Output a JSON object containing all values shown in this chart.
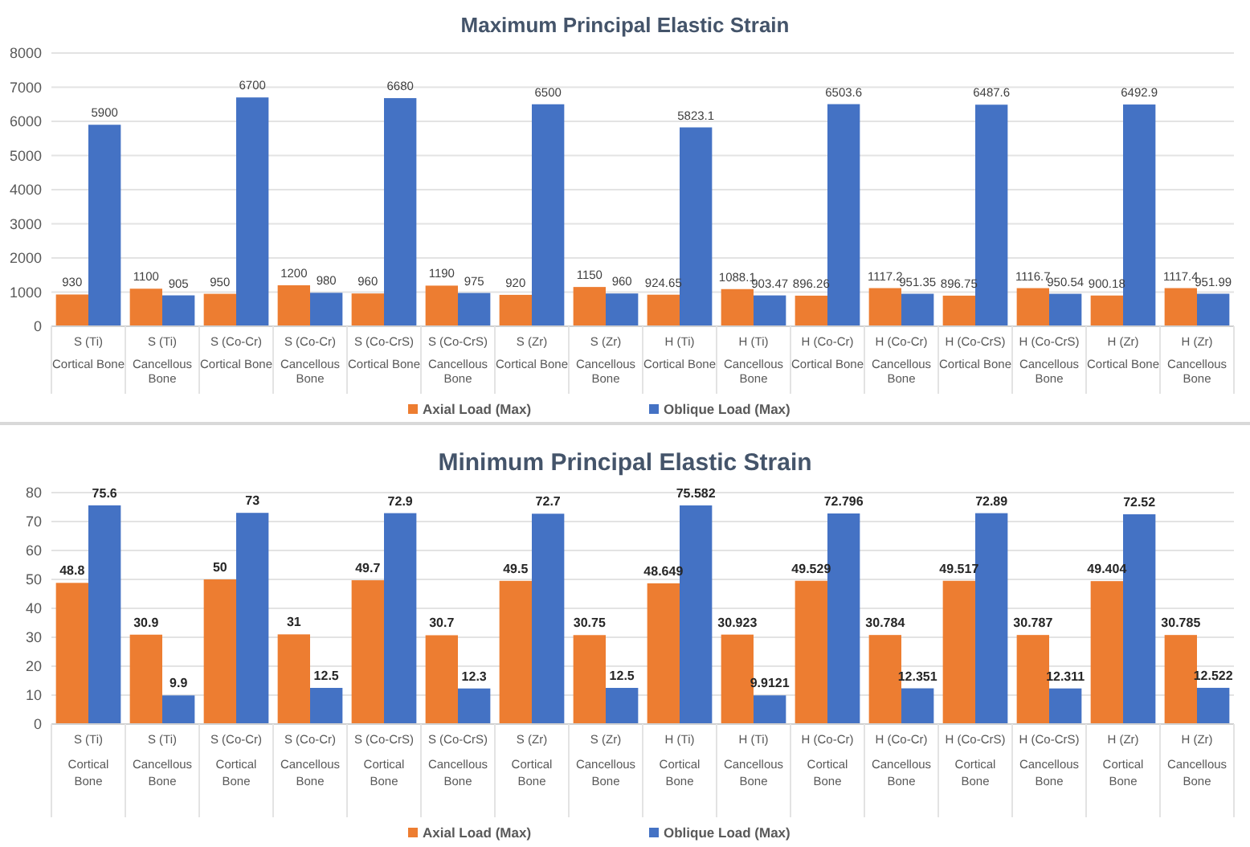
{
  "chart_data": [
    {
      "type": "bar",
      "title": "Maximum Principal Elastic Strain",
      "categories": [
        "S (Ti)\nCortical Bone",
        "S (Ti)\nCancellous\nBone",
        "S (Co-Cr)\nCortical Bone",
        "S (Co-Cr)\nCancellous\nBone",
        "S (Co-CrS)\nCortical Bone",
        "S (Co-CrS)\nCancellous\nBone",
        "S (Zr)\nCortical Bone",
        "S (Zr)\nCancellous\nBone",
        "H (Ti)\nCortical Bone",
        "H (Ti)\nCancellous\nBone",
        "H (Co-Cr)\nCortical Bone",
        "H (Co-Cr)\nCancellous\nBone",
        "H (Co-CrS)\nCortical Bone",
        "H (Co-CrS)\nCancellous\nBone",
        "H (Zr)\nCortical Bone",
        "H (Zr)\nCancellous\nBone"
      ],
      "series": [
        {
          "name": "Axial Load (Max)",
          "color": "#ed7d31",
          "values": [
            930,
            1100,
            950,
            1200,
            960,
            1190,
            920,
            1150,
            924.65,
            1088.1,
            896.26,
            1117.2,
            896.75,
            1116.7,
            900.18,
            1117.4
          ]
        },
        {
          "name": "Oblique Load (Max)",
          "color": "#4472c4",
          "values": [
            5900,
            905,
            6700,
            980,
            6680,
            975,
            6500,
            960,
            5823.1,
            903.47,
            6503.6,
            951.35,
            6487.6,
            950.54,
            6492.9,
            951.99
          ]
        }
      ],
      "ylim": [
        0,
        8000
      ],
      "yticks": [
        0,
        1000,
        2000,
        3000,
        4000,
        5000,
        6000,
        7000,
        8000
      ],
      "grid": "y",
      "legend": "bottom",
      "data_labels": true
    },
    {
      "type": "bar",
      "title": "Minimum Principal Elastic Strain",
      "categories": [
        "S (Ti)\nCortical\nBone",
        "S (Ti)\nCancellous\nBone",
        "S (Co-Cr)\nCortical\nBone",
        "S (Co-Cr)\nCancellous\nBone",
        "S (Co-CrS)\nCortical\nBone",
        "S (Co-CrS)\nCancellous\nBone",
        "S (Zr)\nCortical\nBone",
        "S (Zr)\nCancellous\nBone",
        "H (Ti)\nCortical\nBone",
        "H (Ti)\nCancellous\nBone",
        "H (Co-Cr)\nCortical\nBone",
        "H (Co-Cr)\nCancellous\nBone",
        "H (Co-CrS)\nCortical\nBone",
        "H (Co-CrS)\nCancellous\nBone",
        "H (Zr)\nCortical\nBone",
        "H (Zr)\nCancellous\nBone"
      ],
      "series": [
        {
          "name": "Axial Load (Max)",
          "color": "#ed7d31",
          "values": [
            48.8,
            30.9,
            50,
            31,
            49.7,
            30.7,
            49.5,
            30.75,
            48.649,
            30.923,
            49.529,
            30.784,
            49.517,
            30.787,
            49.404,
            30.785
          ]
        },
        {
          "name": "Oblique Load (Max)",
          "color": "#4472c4",
          "values": [
            75.6,
            9.9,
            73,
            12.5,
            72.9,
            12.3,
            72.7,
            12.5,
            75.582,
            9.9121,
            72.796,
            12.351,
            72.89,
            12.311,
            72.52,
            12.522
          ]
        }
      ],
      "ylim": [
        0,
        80
      ],
      "yticks": [
        0,
        10,
        20,
        30,
        40,
        50,
        60,
        70,
        80
      ],
      "grid": "y",
      "legend": "bottom",
      "data_labels": true
    }
  ]
}
